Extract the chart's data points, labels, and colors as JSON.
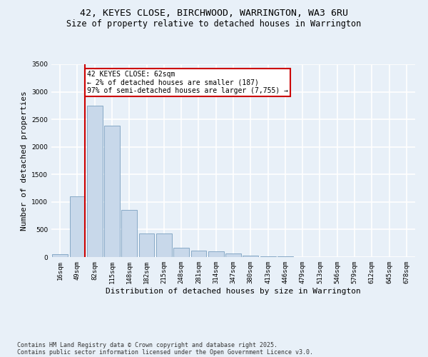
{
  "title1": "42, KEYES CLOSE, BIRCHWOOD, WARRINGTON, WA3 6RU",
  "title2": "Size of property relative to detached houses in Warrington",
  "xlabel": "Distribution of detached houses by size in Warrington",
  "ylabel": "Number of detached properties",
  "categories": [
    "16sqm",
    "49sqm",
    "82sqm",
    "115sqm",
    "148sqm",
    "182sqm",
    "215sqm",
    "248sqm",
    "281sqm",
    "314sqm",
    "347sqm",
    "380sqm",
    "413sqm",
    "446sqm",
    "479sqm",
    "513sqm",
    "546sqm",
    "579sqm",
    "612sqm",
    "645sqm",
    "678sqm"
  ],
  "values": [
    55,
    1100,
    2750,
    2380,
    850,
    430,
    430,
    170,
    120,
    100,
    60,
    30,
    15,
    8,
    4,
    2,
    2,
    1,
    1,
    0,
    0
  ],
  "bar_color": "#c8d8ea",
  "bar_edge_color": "#7a9fc0",
  "annotation_text": "42 KEYES CLOSE: 62sqm\n← 2% of detached houses are smaller (187)\n97% of semi-detached houses are larger (7,755) →",
  "annotation_box_color": "#ffffff",
  "annotation_box_edge": "#cc0000",
  "vline_color": "#cc0000",
  "ylim": [
    0,
    3500
  ],
  "yticks": [
    0,
    500,
    1000,
    1500,
    2000,
    2500,
    3000,
    3500
  ],
  "footer1": "Contains HM Land Registry data © Crown copyright and database right 2025.",
  "footer2": "Contains public sector information licensed under the Open Government Licence v3.0.",
  "background_color": "#e8f0f8",
  "plot_bg_color": "#e8f0f8",
  "grid_color": "#ffffff",
  "title_fontsize": 9.5,
  "subtitle_fontsize": 8.5,
  "tick_fontsize": 6.5,
  "label_fontsize": 8,
  "footer_fontsize": 6,
  "annot_fontsize": 7
}
